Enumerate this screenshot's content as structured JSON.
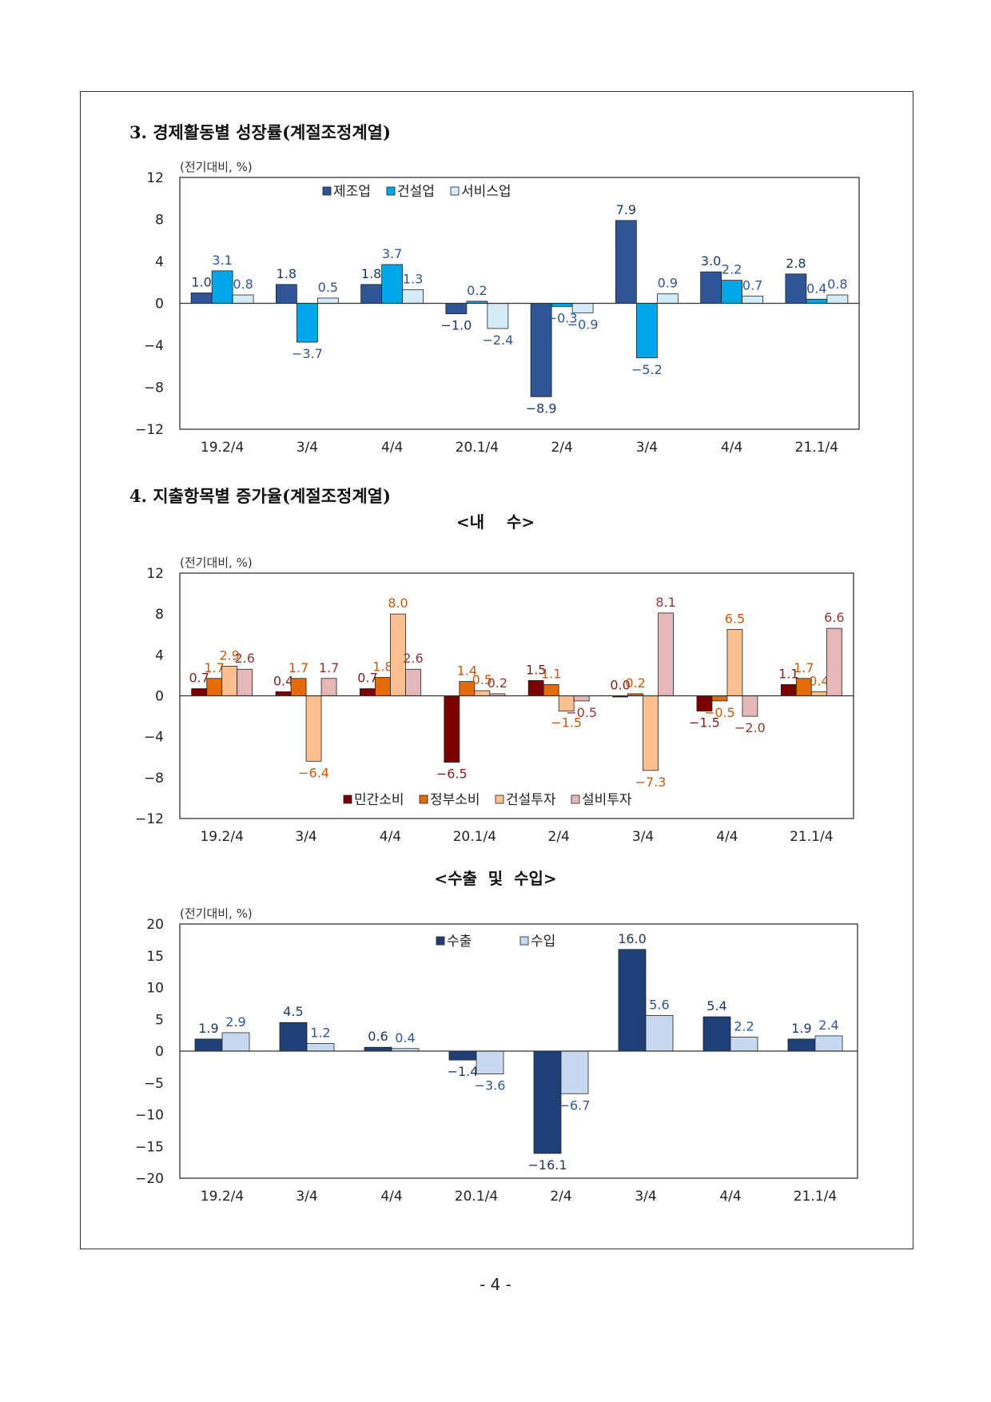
{
  "sections": {
    "s3_title": "3.  경제활동별  성장률(계절조정계열)",
    "s4_title": "4.  지출항목별  증가율(계절조정계열)",
    "domestic_title": "<내    수>",
    "trade_title": "<수출  및  수입>"
  },
  "page_number": "- 4 -",
  "chart_data": [
    {
      "type": "bar",
      "unit_label": "(전기대비, %)",
      "categories": [
        "19.2/4",
        "3/4",
        "4/4",
        "20.1/4",
        "2/4",
        "3/4",
        "4/4",
        "21.1/4"
      ],
      "ylim": [
        -12,
        12
      ],
      "yticks": [
        12,
        8,
        4,
        0,
        -4,
        -8,
        -12
      ],
      "legend_position": "top-center",
      "grid": false,
      "series": [
        {
          "name": "제조업",
          "color": "#2F5597",
          "label_color": "#1F3864",
          "values": [
            1.0,
            1.8,
            1.8,
            -1.0,
            -8.9,
            7.9,
            3.0,
            2.8
          ],
          "labels": [
            "1.0",
            "1.8",
            "1.8",
            "−1.0",
            "−8.9",
            "7.9",
            "3.0",
            "2.8"
          ]
        },
        {
          "name": "건설업",
          "color": "#00A6E8",
          "label_color": "#2F5597",
          "values": [
            3.1,
            -3.7,
            3.7,
            0.2,
            -0.3,
            -5.2,
            2.2,
            0.4
          ],
          "labels": [
            "3.1",
            "−3.7",
            "3.7",
            "0.2",
            "−0.3",
            "−5.2",
            "2.2",
            "0.4"
          ]
        },
        {
          "name": "서비스업",
          "color": "#D4ECF8",
          "label_color": "#2F5597",
          "values": [
            0.8,
            0.5,
            1.3,
            -2.4,
            -0.9,
            0.9,
            0.7,
            0.8
          ],
          "labels": [
            "0.8",
            "0.5",
            "1.3",
            "−2.4",
            "−0.9",
            "0.9",
            "0.7",
            "0.8"
          ]
        }
      ]
    },
    {
      "type": "bar",
      "unit_label": "(전기대비, %)",
      "categories": [
        "19.2/4",
        "3/4",
        "4/4",
        "20.1/4",
        "2/4",
        "3/4",
        "4/4",
        "21.1/4"
      ],
      "ylim": [
        -12,
        12
      ],
      "yticks": [
        12,
        8,
        4,
        0,
        -4,
        -8,
        -12
      ],
      "legend_position": "bottom-center",
      "grid": false,
      "series": [
        {
          "name": "민간소비",
          "color": "#7B0000",
          "label_color": "#7B1F1F",
          "values": [
            0.7,
            0.4,
            0.7,
            -6.5,
            1.5,
            0.0,
            -1.5,
            1.1
          ],
          "labels": [
            "0.7",
            "0.4",
            "0.7",
            "−6.5",
            "1.5",
            "0.0",
            "−1.5",
            "1.1"
          ]
        },
        {
          "name": "정부소비",
          "color": "#E36C09",
          "label_color": "#C55A11",
          "values": [
            1.7,
            1.7,
            1.8,
            1.4,
            1.1,
            0.2,
            -0.5,
            1.7
          ],
          "labels": [
            "1.7",
            "1.7",
            "1.8",
            "1.4",
            "1.1",
            "0.2",
            "−0.5",
            "1.7"
          ]
        },
        {
          "name": "건설투자",
          "color": "#FAC090",
          "label_color": "#C55A11",
          "values": [
            2.9,
            -6.4,
            8.0,
            0.5,
            -1.5,
            -7.3,
            6.5,
            0.4
          ],
          "labels": [
            "2.9",
            "−6.4",
            "8.0",
            "0.5",
            "−1.5",
            "−7.3",
            "6.5",
            "0.4"
          ]
        },
        {
          "name": "설비투자",
          "color": "#E6B8B7",
          "label_color": "#943634",
          "values": [
            2.6,
            1.7,
            2.6,
            0.2,
            -0.5,
            8.1,
            -2.0,
            6.6
          ],
          "labels": [
            "2.6",
            "1.7",
            "2.6",
            "0.2",
            "−0.5",
            "8.1",
            "−2.0",
            "6.6"
          ]
        }
      ]
    },
    {
      "type": "bar",
      "unit_label": "(전기대비, %)",
      "categories": [
        "19.2/4",
        "3/4",
        "4/4",
        "20.1/4",
        "2/4",
        "3/4",
        "4/4",
        "21.1/4"
      ],
      "ylim": [
        -20,
        20
      ],
      "yticks": [
        20,
        15,
        10,
        5,
        0,
        -5,
        -10,
        -15,
        -20
      ],
      "legend_position": "top-center",
      "grid": false,
      "series": [
        {
          "name": "수출",
          "color": "#1F3F76",
          "label_color": "#1F3864",
          "values": [
            1.9,
            4.5,
            0.6,
            -1.4,
            -16.1,
            16.0,
            5.4,
            1.9
          ],
          "labels": [
            "1.9",
            "4.5",
            "0.6",
            "−1.4",
            "−16.1",
            "16.0",
            "5.4",
            "1.9"
          ]
        },
        {
          "name": "수입",
          "color": "#C6D9F1",
          "label_color": "#2F5597",
          "values": [
            2.9,
            1.2,
            0.4,
            -3.6,
            -6.7,
            5.6,
            2.2,
            2.4
          ],
          "labels": [
            "2.9",
            "1.2",
            "0.4",
            "−3.6",
            "−6.7",
            "5.6",
            "2.2",
            "2.4"
          ]
        }
      ]
    }
  ]
}
